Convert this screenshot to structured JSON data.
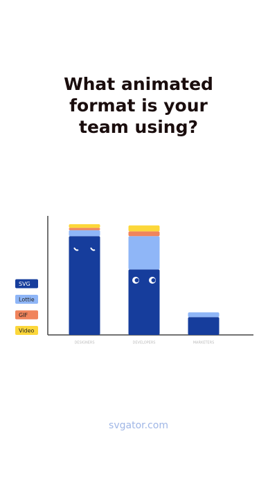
{
  "chart_data": {
    "type": "stacked_bar",
    "title": "What animated format is your team using?",
    "categories": [
      "DESIGNERS",
      "DEVELOPERS",
      "MARKETERS"
    ],
    "series": [
      {
        "name": "SVG",
        "color": "#163d9c",
        "values": [
          83,
          55,
          15
        ]
      },
      {
        "name": "Lottie",
        "color": "#8fb6f7",
        "values": [
          5,
          28,
          4
        ]
      },
      {
        "name": "GIF",
        "color": "#f0845c",
        "values": [
          2,
          4,
          0
        ]
      },
      {
        "name": "Video",
        "color": "#fcd73a",
        "values": [
          3,
          5,
          0
        ]
      }
    ],
    "ylim": [
      0,
      100
    ],
    "legend": "left",
    "footer": "svgator.com"
  }
}
